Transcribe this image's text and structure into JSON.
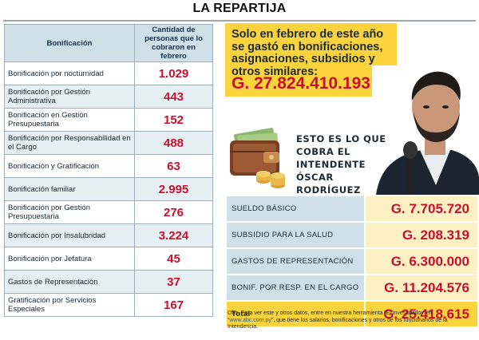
{
  "title": "LA REPARTIJA",
  "left_table": {
    "headers": [
      "Bonificación",
      "Cantidad de personas que lo cobraron en febrero"
    ],
    "rows": [
      {
        "name": "Bonificación por nocturnidad",
        "value": "1.029"
      },
      {
        "name": "Bonificación por Gestión Administrativa",
        "value": "443"
      },
      {
        "name": "Bonificación en Gestión Presupuestaria",
        "value": "152"
      },
      {
        "name": "Bonificación por Responsabilidad en el Cargo",
        "value": "488"
      },
      {
        "name": "Bonificación y Gratificación",
        "value": "63"
      },
      {
        "name": "Bonificación familiar",
        "value": "2.995"
      },
      {
        "name": "Bonificación por Gestión Presupuestaria",
        "value": "276"
      },
      {
        "name": "Bonificación por Insalubridad",
        "value": "3.224"
      },
      {
        "name": "Bonificación por Jefatura",
        "value": "45"
      },
      {
        "name": "Gastos de Representación",
        "value": "37"
      },
      {
        "name": "Gratificación por Servicios Especiales",
        "value": "167"
      }
    ]
  },
  "callout": {
    "text": "Solo en febrero de este año se gastó en bonificaciones, asignaciones, subsidios y otros similares:",
    "amount": "G. 27.824.410.193"
  },
  "mayor_caption": "ESTO ES LO QUE COBRA EL INTENDENTE ÓSCAR RODRÍGUEZ",
  "salary_table": {
    "rows": [
      {
        "label": "SUELDO BÁSICO",
        "amount": "G. 7.705.720"
      },
      {
        "label": "SUBSIDIO PARA LA SALUD",
        "amount": "G. 208.319"
      },
      {
        "label": "GASTOS DE REPRESENTACIÓN",
        "amount": "G. 6.300.000"
      },
      {
        "label": "BONIF. POR RESP. EN EL CARGO",
        "amount": "G. 11.204.576"
      }
    ],
    "total": {
      "label": "Total",
      "amount": "G. 25.418.615"
    }
  },
  "note": {
    "before": "Obs. Para ver este y otros datos, entre en nuestra herramienta “El investigador” en “",
    "link": "www.abc.com.py",
    "after": "”, que tiene los salarios, bonificaciones y otros de los funcionarios de la Intendencia."
  },
  "colors": {
    "accent_red": "#c8102e",
    "highlight_yellow": "#fbd33d",
    "header_blue": "#cfe0e8"
  }
}
